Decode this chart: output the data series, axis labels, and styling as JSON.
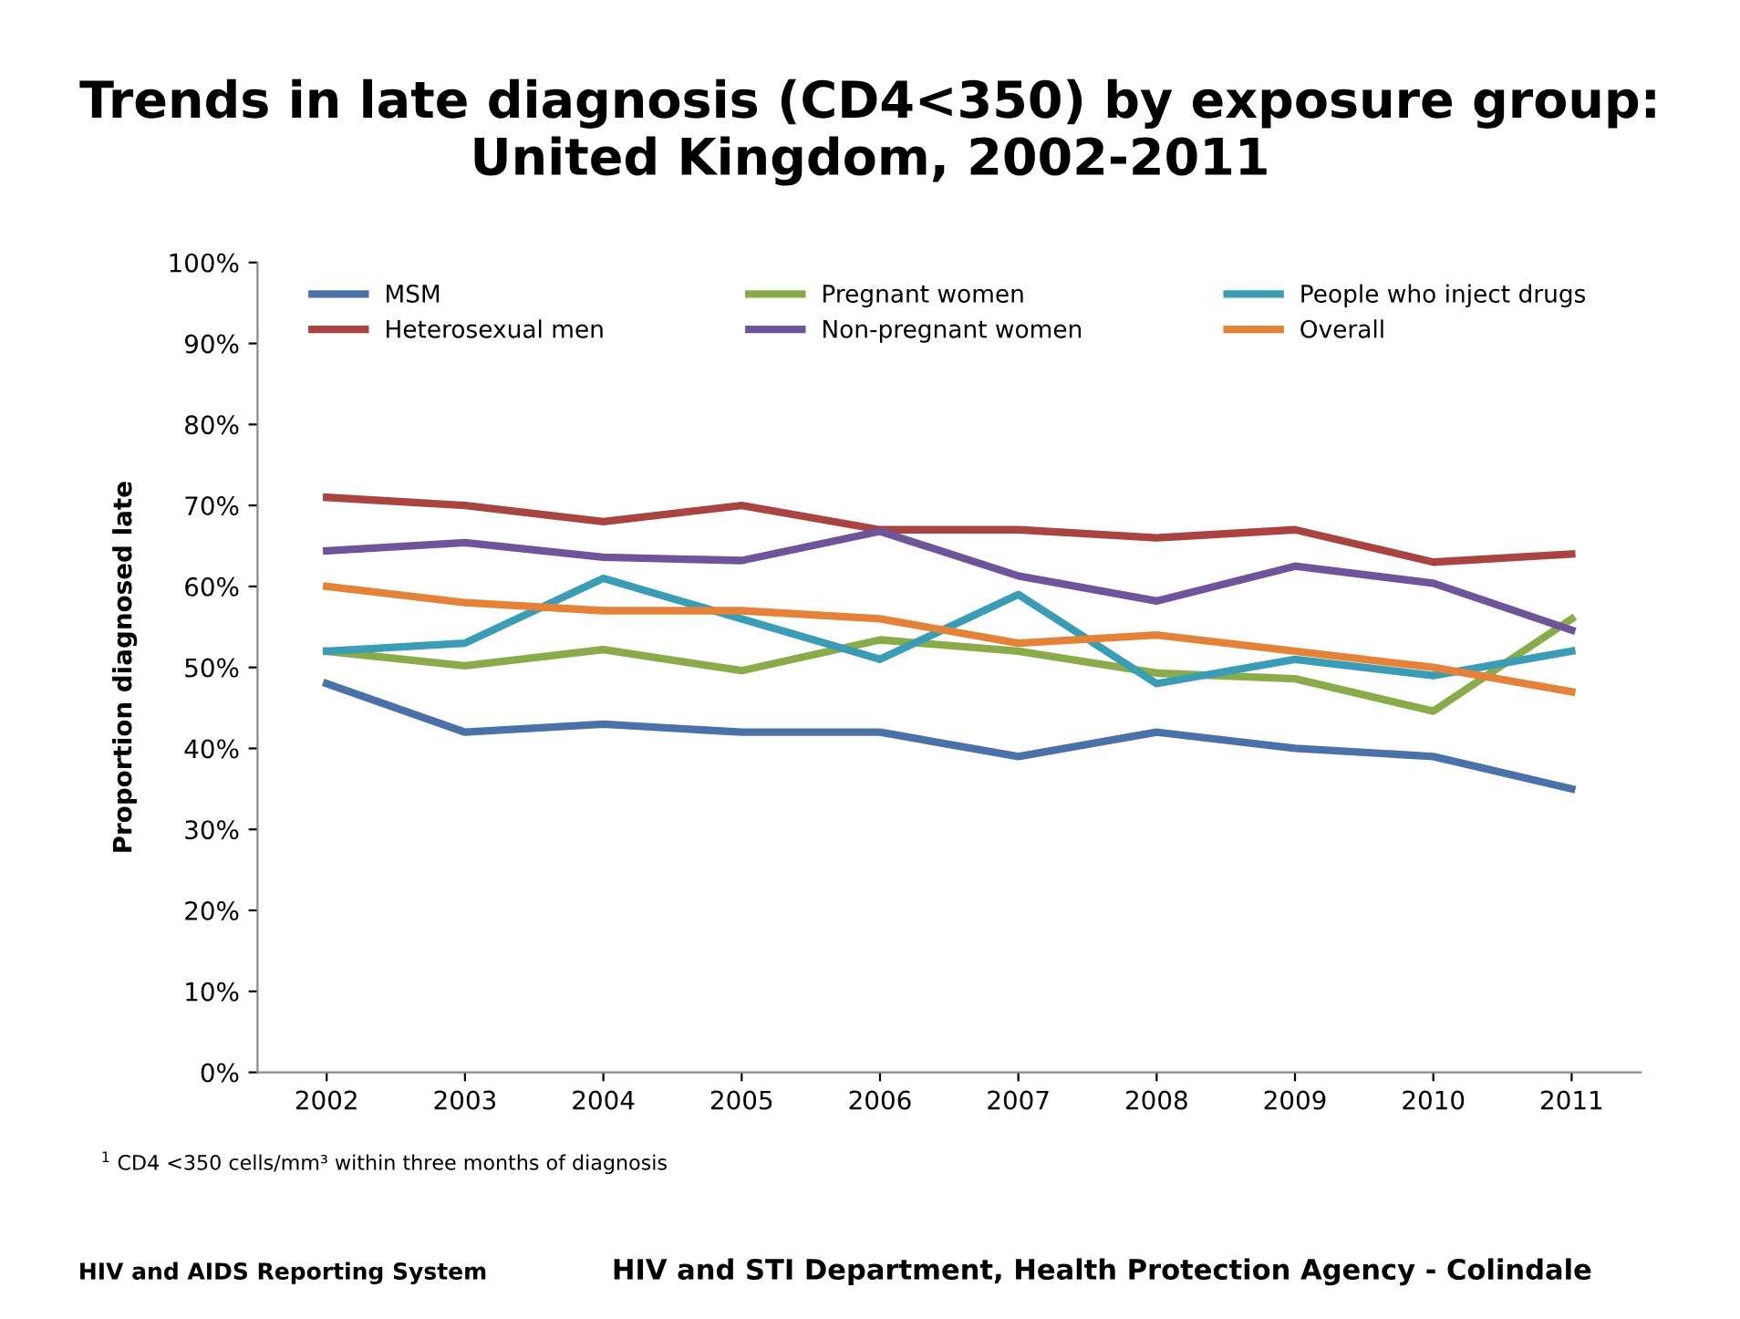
{
  "chart_data": {
    "type": "line",
    "title": "Trends in late diagnosis (CD4<350) by exposure group:\nUnited Kingdom, 2002-2011",
    "ylabel": "Proportion diagnosed late",
    "categories": [
      "2002",
      "2003",
      "2004",
      "2005",
      "2006",
      "2007",
      "2008",
      "2009",
      "2010",
      "2011"
    ],
    "series": [
      {
        "name": "MSM",
        "color": "#4a72a8",
        "values": [
          48,
          42,
          43,
          42,
          42,
          39,
          42,
          40,
          39,
          35
        ]
      },
      {
        "name": "Heterosexual men",
        "color": "#a94442",
        "values": [
          71,
          70,
          68,
          70,
          67,
          67,
          66,
          67,
          63,
          64
        ]
      },
      {
        "name": "Pregnant women",
        "color": "#8aab4a",
        "values": [
          52,
          50.2,
          52.2,
          49.6,
          53.4,
          52,
          49.3,
          48.6,
          44.6,
          56
        ]
      },
      {
        "name": "Non-pregnant women",
        "color": "#70549a",
        "values": [
          64.4,
          65.4,
          63.6,
          63.2,
          66.8,
          61.3,
          58.2,
          62.5,
          60.4,
          54.6
        ]
      },
      {
        "name": "People who inject drugs",
        "color": "#3b9db5",
        "values": [
          52,
          53,
          61,
          56,
          51,
          59,
          48,
          51,
          49,
          52
        ]
      },
      {
        "name": "Overall",
        "color": "#e5823a",
        "values": [
          60,
          58,
          57,
          57,
          56,
          53,
          54,
          52,
          50,
          47
        ]
      }
    ],
    "ylim": [
      0,
      100
    ],
    "yticks": [
      {
        "value": 0,
        "label": "0%"
      },
      {
        "value": 10,
        "label": "10%"
      },
      {
        "value": 20,
        "label": "20%"
      },
      {
        "value": 30,
        "label": "30%"
      },
      {
        "value": 40,
        "label": "40%"
      },
      {
        "value": 50,
        "label": "50%"
      },
      {
        "value": 60,
        "label": "60%"
      },
      {
        "value": 70,
        "label": "70%"
      },
      {
        "value": 80,
        "label": "80%"
      },
      {
        "value": 90,
        "label": "90%"
      },
      {
        "value": 100,
        "label": "100%"
      }
    ],
    "grid": false,
    "legend": "top",
    "marker": "none",
    "line_style": "solid",
    "annotations": [
      "$^{1}$ CD4 <350 cells/mm³ within three months of diagnosis",
      "HIV and AIDS Reporting System",
      "HIV and STI Department, Health Protection Agency - Colindale"
    ]
  }
}
